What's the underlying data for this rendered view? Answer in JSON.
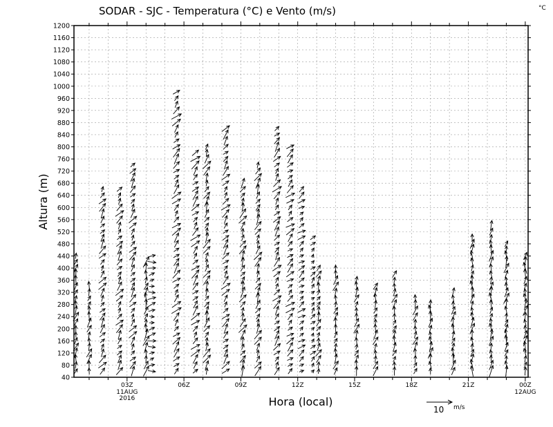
{
  "chart_data": {
    "type": "vector-profile",
    "title": "SODAR - SJC - Temperatura (°C) e Vento (m/s)",
    "unit_label": "°C",
    "xlabel": "Hora (local)",
    "ylabel": "Altura (m)",
    "ylim": [
      40,
      1200
    ],
    "xlim": [
      0.2,
      24.15
    ],
    "y_ticks": [
      40,
      80,
      120,
      160,
      200,
      240,
      280,
      320,
      360,
      400,
      440,
      480,
      520,
      560,
      600,
      640,
      680,
      720,
      760,
      800,
      840,
      880,
      920,
      960,
      1000,
      1040,
      1080,
      1120,
      1160,
      1200
    ],
    "x_ticks": [
      {
        "hour": 3,
        "label": "03Z",
        "sub": [
          "11AUG",
          "2016"
        ]
      },
      {
        "hour": 6,
        "label": "06Z",
        "sub": []
      },
      {
        "hour": 9,
        "label": "09Z",
        "sub": []
      },
      {
        "hour": 12,
        "label": "12Z",
        "sub": []
      },
      {
        "hour": 15,
        "label": "15Z",
        "sub": []
      },
      {
        "hour": 18,
        "label": "18Z",
        "sub": []
      },
      {
        "hour": 21,
        "label": "21Z",
        "sub": []
      },
      {
        "hour": 24,
        "label": "00Z",
        "sub": [
          "12AUG"
        ]
      }
    ],
    "grid": true,
    "reference_vector": {
      "speed": 10,
      "label": "10",
      "unit": "m/s"
    },
    "profiles": [
      {
        "hour": 0.3,
        "top": 440,
        "u": 1.5,
        "v": 6
      },
      {
        "hour": 1.0,
        "top": 340,
        "u": 1.5,
        "v": 6
      },
      {
        "hour": 1.7,
        "top": 660,
        "u": 3.5,
        "v": 5
      },
      {
        "hour": 2.6,
        "top": 660,
        "u": 3.5,
        "v": 5
      },
      {
        "hour": 3.3,
        "top": 740,
        "u": 3.5,
        "v": 5
      },
      {
        "hour": 4.0,
        "top": 420,
        "u": 1.5,
        "v": 7
      },
      {
        "hour": 4.3,
        "top": 440,
        "u": 5,
        "v": 1
      },
      {
        "hour": 5.6,
        "top": 980,
        "u": 4.5,
        "v": 5
      },
      {
        "hour": 6.6,
        "top": 780,
        "u": 4.5,
        "v": 5
      },
      {
        "hour": 7.2,
        "top": 800,
        "u": 3,
        "v": 6
      },
      {
        "hour": 8.2,
        "top": 860,
        "u": 4,
        "v": 5
      },
      {
        "hour": 9.1,
        "top": 680,
        "u": 3,
        "v": 6
      },
      {
        "hour": 9.9,
        "top": 750,
        "u": 3,
        "v": 6
      },
      {
        "hour": 10.9,
        "top": 860,
        "u": 4,
        "v": 5
      },
      {
        "hour": 11.6,
        "top": 800,
        "u": 4.5,
        "v": 4
      },
      {
        "hour": 12.2,
        "top": 660,
        "u": 4,
        "v": 3
      },
      {
        "hour": 12.8,
        "top": 510,
        "u": 2.5,
        "v": 3
      },
      {
        "hour": 13.1,
        "top": 410,
        "u": 2,
        "v": 5
      },
      {
        "hour": 14.0,
        "top": 400,
        "u": 1.5,
        "v": 6
      },
      {
        "hour": 15.1,
        "top": 360,
        "u": 1.5,
        "v": 6
      },
      {
        "hour": 16.1,
        "top": 350,
        "u": 1.5,
        "v": 6
      },
      {
        "hour": 17.1,
        "top": 380,
        "u": 1.5,
        "v": 6
      },
      {
        "hour": 18.2,
        "top": 310,
        "u": 1.5,
        "v": 6
      },
      {
        "hour": 19.0,
        "top": 280,
        "u": 0.5,
        "v": 7
      },
      {
        "hour": 20.2,
        "top": 320,
        "u": 1,
        "v": 7
      },
      {
        "hour": 21.2,
        "top": 500,
        "u": 0.5,
        "v": 7
      },
      {
        "hour": 22.2,
        "top": 540,
        "u": 0.5,
        "v": 7
      },
      {
        "hour": 23.0,
        "top": 480,
        "u": 1,
        "v": 7
      },
      {
        "hour": 24.0,
        "top": 440,
        "u": 0.5,
        "v": 7
      }
    ]
  }
}
